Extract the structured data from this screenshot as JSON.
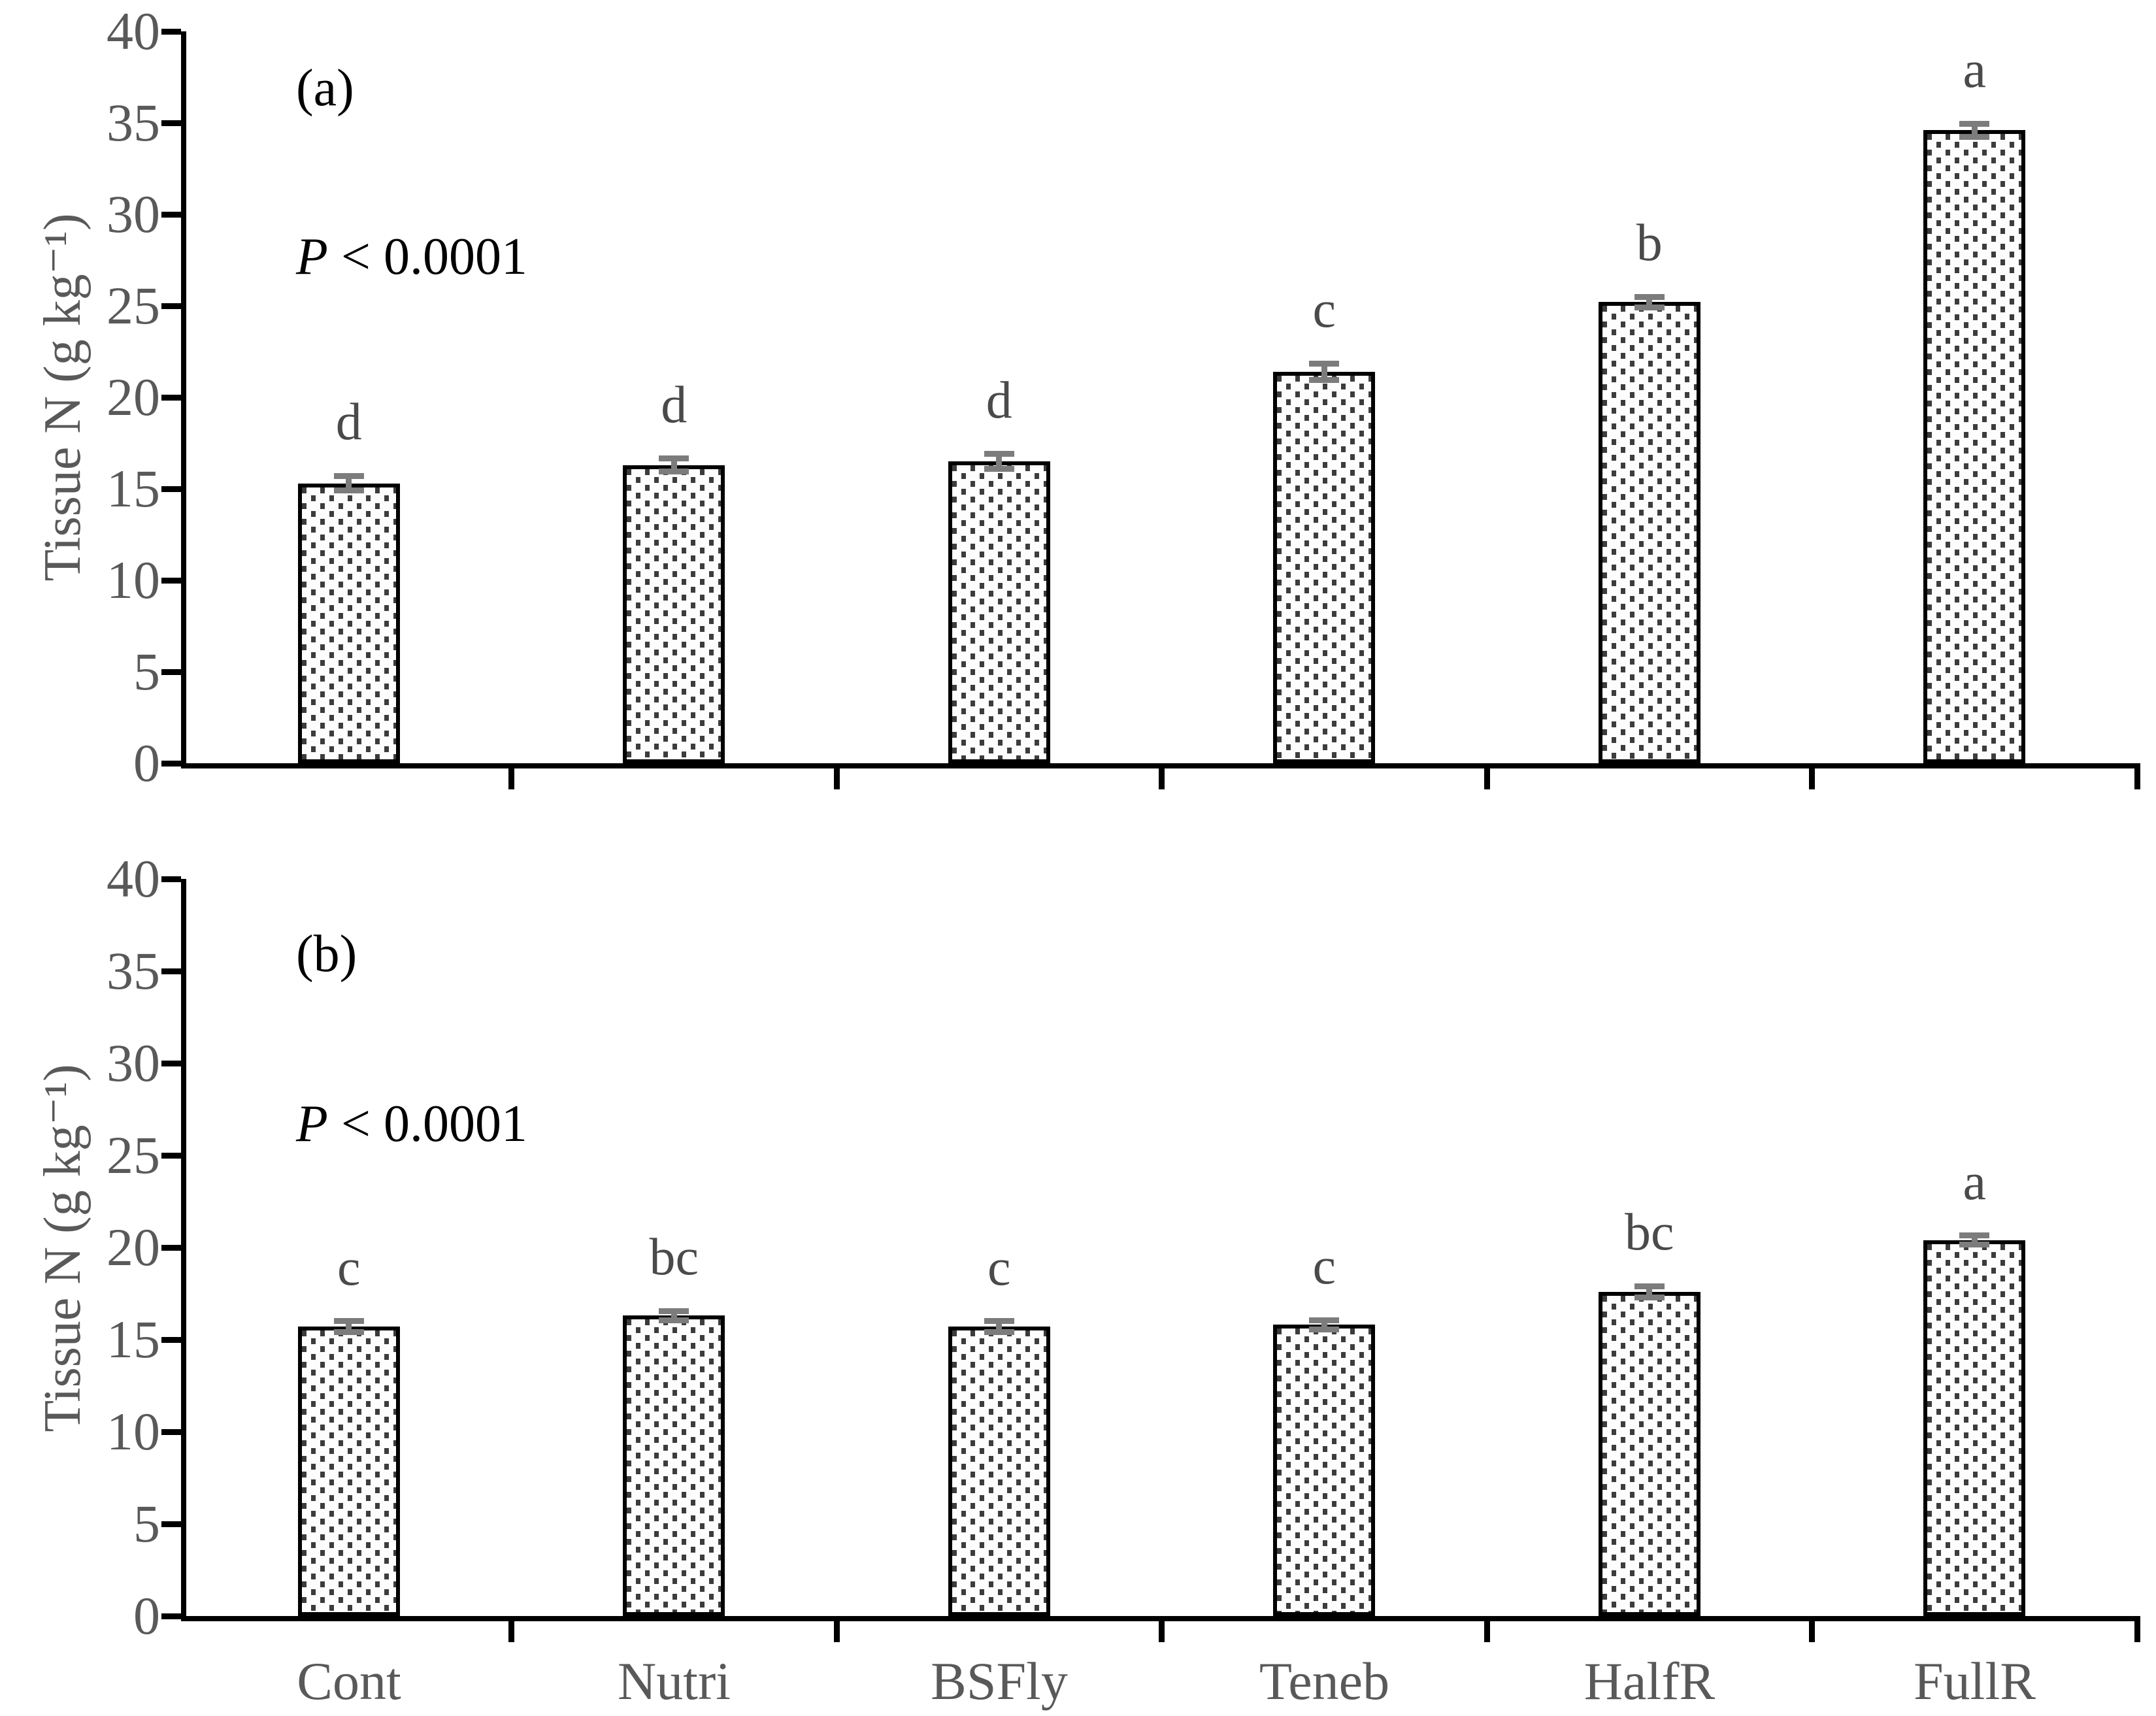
{
  "figure_type": "two-panel vertical bar chart with error bars and significance letters",
  "colors": {
    "bar_fill": "#fdfdfd",
    "bar_dot": "#3c3c3c",
    "bar_border": "#000000",
    "error_bar": "#7c7c7c",
    "axis": "#000000",
    "tick_text": "#595959",
    "sig_letter": "#4a4a4a",
    "annotation_text": "#000000"
  },
  "chart_data": [
    {
      "type": "bar",
      "panel_label": "(a)",
      "p_italic": "P",
      "p_rest": " < 0.0001",
      "p_value_text": "P < 0.0001",
      "title": "",
      "xlabel": "",
      "ylabel": "Tissue N (g kg⁻¹)",
      "ylim": [
        0,
        40
      ],
      "y_ticks": [
        40,
        35,
        30,
        25,
        20,
        15,
        10,
        5,
        0
      ],
      "grid": false,
      "legend": null,
      "bar_pattern": "dotted-squares",
      "categories": [
        "Cont",
        "Nutri",
        "BSFly",
        "Teneb",
        "HalfR",
        "FullR"
      ],
      "values": [
        15.3,
        16.3,
        16.5,
        21.4,
        25.2,
        34.6
      ],
      "errors": [
        0.4,
        0.35,
        0.4,
        0.45,
        0.3,
        0.35
      ],
      "sig_letters": [
        "d",
        "d",
        "d",
        "c",
        "b",
        "a"
      ]
    },
    {
      "type": "bar",
      "panel_label": "(b)",
      "p_italic": "P",
      "p_rest": " < 0.0001",
      "p_value_text": "P < 0.0001",
      "title": "",
      "xlabel": "",
      "ylabel": "Tissue N (g kg⁻¹)",
      "ylim": [
        0,
        40
      ],
      "y_ticks": [
        40,
        35,
        30,
        25,
        20,
        15,
        10,
        5,
        0
      ],
      "grid": false,
      "legend": null,
      "bar_pattern": "dotted-squares",
      "categories": [
        "Cont",
        "Nutri",
        "BSFly",
        "Teneb",
        "HalfR",
        "FullR"
      ],
      "values": [
        15.7,
        16.3,
        15.7,
        15.8,
        17.6,
        20.4
      ],
      "errors": [
        0.3,
        0.25,
        0.3,
        0.25,
        0.3,
        0.25
      ],
      "sig_letters": [
        "c",
        "bc",
        "c",
        "c",
        "bc",
        "a"
      ]
    }
  ]
}
